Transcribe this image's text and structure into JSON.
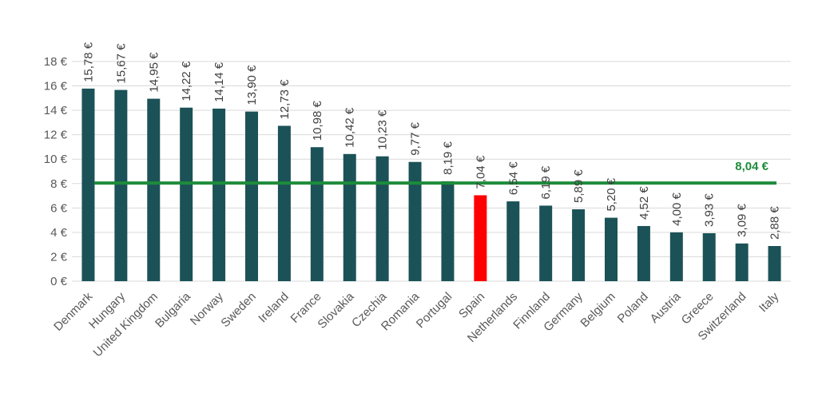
{
  "chart_data": {
    "type": "bar",
    "categories": [
      "Denmark",
      "Hungary",
      "United Kingdom",
      "Bulgaria",
      "Norway",
      "Sweden",
      "Ireland",
      "France",
      "Slovakia",
      "Czechia",
      "Romania",
      "Portugal",
      "Spain",
      "Netherlands",
      "Finnland",
      "Germany",
      "Belgium",
      "Poland",
      "Austria",
      "Greece",
      "Switzerland",
      "Italy"
    ],
    "values": [
      15.78,
      15.67,
      14.95,
      14.22,
      14.14,
      13.9,
      12.73,
      10.98,
      10.42,
      10.23,
      9.77,
      8.19,
      7.04,
      6.54,
      6.19,
      5.89,
      5.2,
      4.52,
      4.0,
      3.93,
      3.09,
      2.88
    ],
    "data_labels": [
      "15,78 €",
      "15,67 €",
      "14,95 €",
      "14,22 €",
      "14,14 €",
      "13,90 €",
      "12,73 €",
      "10,98 €",
      "10,42 €",
      "10,23 €",
      "9,77 €",
      "8,19 €",
      "7,04 €",
      "6,54 €",
      "6,19 €",
      "5,89 €",
      "5,20 €",
      "4,52 €",
      "4,00 €",
      "3,93 €",
      "3,09 €",
      "2,88 €"
    ],
    "highlight_category": "Spain",
    "yticks": [
      0,
      2,
      4,
      6,
      8,
      10,
      12,
      14,
      16,
      18
    ],
    "ytick_labels": [
      "0 €",
      "2 €",
      "4 €",
      "6 €",
      "8 €",
      "10 €",
      "12 €",
      "14 €",
      "16 €",
      "18 €"
    ],
    "ylim": [
      0,
      18
    ],
    "grid": true,
    "average": {
      "value": 8.04,
      "label": "8,04 €"
    },
    "colors": {
      "bar": "#1b5257",
      "highlight": "#ff0000",
      "average": "#1e8c3a"
    }
  }
}
